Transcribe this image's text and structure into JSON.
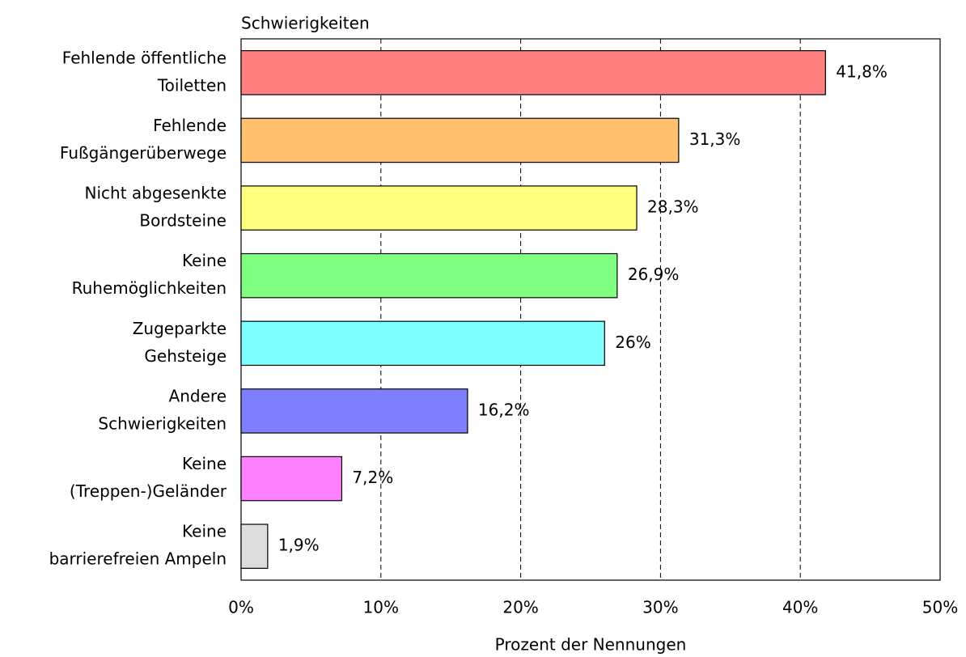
{
  "chart_data": {
    "type": "bar",
    "orientation": "horizontal",
    "title": "Schwierigkeiten",
    "xlabel": "Prozent der Nennungen",
    "categories": [
      [
        "Fehlende öffentliche",
        "Toiletten"
      ],
      [
        "Fehlende",
        "Fußgängerüberwege"
      ],
      [
        "Nicht abgesenkte",
        "Bordsteine"
      ],
      [
        "Keine",
        "Ruhemöglichkeiten"
      ],
      [
        "Zugeparkte",
        "Gehsteige"
      ],
      [
        "Andere",
        "Schwierigkeiten"
      ],
      [
        "Keine",
        "(Treppen-)Geländer"
      ],
      [
        "Keine",
        "barrierefreien Ampeln"
      ]
    ],
    "values": [
      41.8,
      31.3,
      28.3,
      26.9,
      26,
      16.2,
      7.2,
      1.9
    ],
    "value_labels": [
      "41,8%",
      "31,3%",
      "28,3%",
      "26,9%",
      "26%",
      "16,2%",
      "7,2%",
      "1,9%"
    ],
    "colors": [
      "#ff8080",
      "#ffc070",
      "#ffff80",
      "#80ff80",
      "#80ffff",
      "#8080ff",
      "#ff80ff",
      "#dddddd"
    ],
    "xlim": [
      0,
      50
    ],
    "xticks": [
      {
        "value": 0,
        "label": "0%"
      },
      {
        "value": 10,
        "label": "10%"
      },
      {
        "value": 20,
        "label": "20%"
      },
      {
        "value": 30,
        "label": "30%"
      },
      {
        "value": 40,
        "label": "40%"
      },
      {
        "value": 50,
        "label": "50%"
      }
    ],
    "grid": true
  }
}
